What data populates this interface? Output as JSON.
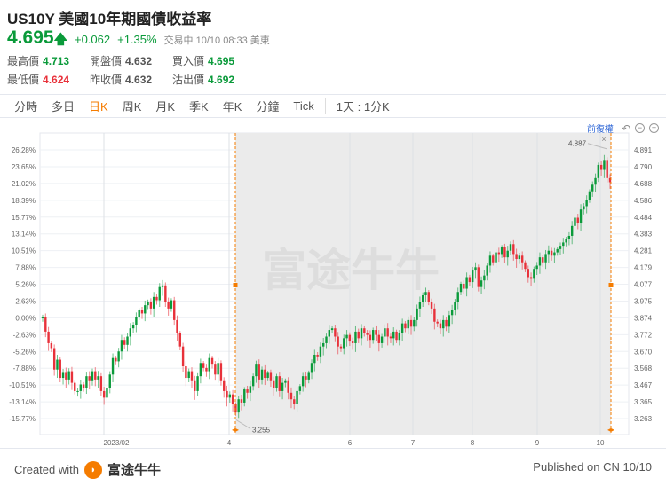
{
  "header": {
    "title": "US10Y 美國10年期國債收益率",
    "price": "4.695",
    "change": "+0.062",
    "change_pct": "+1.35%",
    "status": "交易中 10/10 08:33 美東",
    "arrow_icon": "arrow-up-icon",
    "up_color": "#0a9a3a",
    "down_color": "#e8313a"
  },
  "stats": [
    {
      "label": "最高價",
      "value": "4.713",
      "tone": "g"
    },
    {
      "label": "開盤價",
      "value": "4.632",
      "tone": "n"
    },
    {
      "label": "買入價",
      "value": "4.695",
      "tone": "g"
    },
    {
      "label": "最低價",
      "value": "4.624",
      "tone": "r"
    },
    {
      "label": "昨收價",
      "value": "4.632",
      "tone": "n"
    },
    {
      "label": "沽出價",
      "value": "4.692",
      "tone": "g"
    }
  ],
  "tabs": [
    "分時",
    "多日",
    "日K",
    "周K",
    "月K",
    "季K",
    "年K",
    "分鐘",
    "Tick"
  ],
  "active_tab": "日K",
  "interval": "1天 : 1分K",
  "toolbar": {
    "adjust": "前復權",
    "icons": [
      "undo-icon",
      "zoom-out-icon",
      "zoom-in-icon"
    ]
  },
  "chart_data": {
    "type": "candlestick",
    "x_tick_labels": [
      "2023/02",
      "4",
      "6",
      "7",
      "8",
      "9",
      "10"
    ],
    "y_right_ticks": [
      "4.891",
      "4.790",
      "4.688",
      "4.586",
      "4.484",
      "4.383",
      "4.281",
      "4.179",
      "4.077",
      "3.975",
      "3.874",
      "3.772",
      "3.670",
      "3.568",
      "3.467",
      "3.365",
      "3.263"
    ],
    "y_left_ticks": [
      "26.28%",
      "23.65%",
      "21.02%",
      "18.39%",
      "15.77%",
      "13.14%",
      "10.51%",
      "7.88%",
      "5.26%",
      "2.63%",
      "0.00%",
      "-2.63%",
      "-5.26%",
      "-7.88%",
      "-10.51%",
      "-13.14%",
      "-15.77%"
    ],
    "ylim": [
      3.22,
      4.93
    ],
    "base": 3.874,
    "range_low_label": "3.255",
    "range_high_label": "4.887",
    "close_label": "4.695",
    "first_open": 3.87,
    "closes": [
      3.88,
      3.79,
      3.72,
      3.69,
      3.56,
      3.62,
      3.51,
      3.54,
      3.5,
      3.55,
      3.48,
      3.43,
      3.43,
      3.47,
      3.45,
      3.52,
      3.49,
      3.55,
      3.5,
      3.52,
      3.43,
      3.39,
      3.45,
      3.53,
      3.63,
      3.61,
      3.67,
      3.74,
      3.71,
      3.76,
      3.81,
      3.83,
      3.88,
      3.92,
      3.9,
      3.95,
      3.97,
      3.93,
      4.0,
      3.98,
      4.06,
      4.07,
      3.97,
      3.93,
      3.98,
      3.86,
      3.78,
      3.7,
      3.58,
      3.51,
      3.55,
      3.49,
      3.43,
      3.52,
      3.6,
      3.57,
      3.55,
      3.63,
      3.59,
      3.53,
      3.6,
      3.49,
      3.43,
      3.39,
      3.41,
      3.35,
      3.3,
      3.38,
      3.36,
      3.44,
      3.42,
      3.46,
      3.52,
      3.59,
      3.5,
      3.56,
      3.51,
      3.54,
      3.49,
      3.45,
      3.52,
      3.43,
      3.48,
      3.49,
      3.42,
      3.38,
      3.35,
      3.43,
      3.46,
      3.52,
      3.5,
      3.54,
      3.6,
      3.65,
      3.64,
      3.7,
      3.72,
      3.76,
      3.8,
      3.81,
      3.76,
      3.7,
      3.69,
      3.75,
      3.77,
      3.73,
      3.72,
      3.79,
      3.75,
      3.81,
      3.78,
      3.77,
      3.74,
      3.8,
      3.77,
      3.72,
      3.76,
      3.81,
      3.76,
      3.75,
      3.79,
      3.74,
      3.78,
      3.84,
      3.81,
      3.86,
      3.82,
      3.86,
      3.93,
      3.97,
      4.01,
      4.03,
      3.97,
      3.93,
      3.85,
      3.84,
      3.81,
      3.86,
      3.82,
      3.89,
      3.92,
      3.97,
      4.03,
      4.08,
      4.05,
      4.12,
      4.09,
      4.16,
      4.18,
      4.06,
      4.1,
      4.13,
      4.19,
      4.25,
      4.21,
      4.27,
      4.26,
      4.3,
      4.24,
      4.28,
      4.32,
      4.26,
      4.23,
      4.25,
      4.21,
      4.17,
      4.12,
      4.11,
      4.17,
      4.19,
      4.24,
      4.21,
      4.26,
      4.28,
      4.25,
      4.27,
      4.29,
      4.31,
      4.33,
      4.35,
      4.37,
      4.43,
      4.48,
      4.45,
      4.53,
      4.55,
      4.59,
      4.64,
      4.68,
      4.72,
      4.8,
      4.77,
      4.83,
      4.72,
      4.695
    ]
  },
  "watermark": "富途牛牛",
  "footer": {
    "created": "Created with",
    "brand": "富途牛牛",
    "published": "Published on CN 10/10"
  }
}
